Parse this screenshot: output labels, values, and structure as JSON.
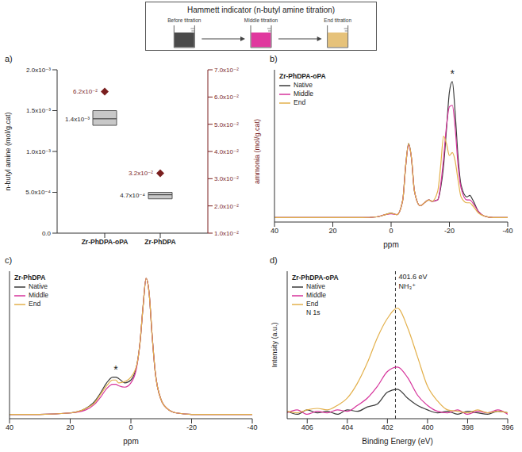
{
  "header": {
    "title": "Hammett indicator (n-butyl amine titration)",
    "beakers": [
      {
        "label": "Before titration",
        "color": "#4a4a4a"
      },
      {
        "label": "Middle titration",
        "color": "#e0389e"
      },
      {
        "label": "End titration",
        "color": "#e6c27a"
      }
    ]
  },
  "chart_data": [
    {
      "type": "box",
      "panel": "a)",
      "categories": [
        "Zr-PhDPA-oPA",
        "Zr-PhDPA"
      ],
      "ylabel": "n-butyl amine (mol/g.cat)",
      "y2label": "ammonia (mol/g.cat)",
      "ylim": [
        0,
        0.002
      ],
      "yticks": [
        {
          "value": 0,
          "label": "0.0"
        },
        {
          "value": 0.0005,
          "label": "5.0x10⁻⁴"
        },
        {
          "value": 0.001,
          "label": "1.0x10⁻³"
        },
        {
          "value": 0.0015,
          "label": "1.5x10⁻³"
        },
        {
          "value": 0.002,
          "label": "2.0x10⁻³"
        }
      ],
      "y2lim": [
        0.01,
        0.07
      ],
      "y2ticks": [
        {
          "value": 0.01,
          "label": "1.0x10⁻²"
        },
        {
          "value": 0.02,
          "label": "2.0x10⁻²"
        },
        {
          "value": 0.03,
          "label": "3.0x10⁻²"
        },
        {
          "value": 0.04,
          "label": "4.0x10⁻²"
        },
        {
          "value": 0.05,
          "label": "5.0x10⁻²"
        },
        {
          "value": 0.06,
          "label": "6.0x10⁻²"
        },
        {
          "value": 0.07,
          "label": "7.0x10⁻²"
        }
      ],
      "data_labels": true,
      "series": [
        {
          "type": "box",
          "color": "#c8c8c8",
          "values": [
            0.0014,
            0.00047
          ],
          "box_low": [
            0.00132,
            0.00042
          ],
          "box_high": [
            0.0015,
            0.0005
          ],
          "value_labels": [
            "1.4x10⁻³",
            "4.7x10⁻⁴"
          ]
        },
        {
          "type": "scatter",
          "marker": "diamond",
          "axis": "y2",
          "color": "#7a1f1f",
          "values": [
            0.062,
            0.032
          ],
          "value_labels": [
            "6.2x10⁻²",
            "3.2x10⁻²"
          ]
        }
      ]
    },
    {
      "type": "line",
      "panel": "b)",
      "legend_title": "Zr-PhDPA-oPA",
      "legend": "top-left",
      "xlabel": "ppm",
      "xlim": [
        40,
        -40
      ],
      "xticks": [
        40,
        20,
        0,
        -20,
        -40
      ],
      "ylim": [
        -3,
        100
      ],
      "tick_labels": "x",
      "x": [
        40,
        30,
        20,
        10,
        5,
        2,
        0,
        -2,
        -4,
        -5,
        -6,
        -7,
        -8,
        -10,
        -12,
        -13,
        -14,
        -16,
        -17,
        -18,
        -19,
        -20,
        -21,
        -22,
        -23,
        -24,
        -26,
        -27,
        -28,
        -30,
        -32,
        -35,
        -40
      ],
      "series": [
        {
          "name": "Native",
          "color": "#3a3a3a",
          "values": [
            0,
            0,
            0,
            0,
            0.5,
            2,
            3,
            2,
            12,
            35,
            50,
            40,
            18,
            8,
            11,
            12,
            11,
            12,
            20,
            35,
            60,
            85,
            92,
            70,
            40,
            22,
            14,
            15,
            12,
            4,
            1,
            0,
            0
          ]
        },
        {
          "name": "Middle",
          "color": "#d6339b",
          "values": [
            0,
            0,
            0,
            0,
            0.5,
            2,
            2.5,
            2,
            12,
            35,
            49,
            40,
            18,
            8,
            11,
            12,
            11,
            12,
            22,
            40,
            62,
            75,
            76,
            60,
            35,
            20,
            12,
            12,
            10,
            4,
            1,
            0,
            0
          ]
        },
        {
          "name": "End",
          "color": "#e3b04b",
          "values": [
            0,
            0,
            0,
            0,
            0.5,
            2,
            3,
            2,
            12,
            35,
            50,
            40,
            18,
            8,
            11,
            12,
            11,
            18,
            35,
            55,
            50,
            42,
            44,
            38,
            25,
            14,
            10,
            10,
            8,
            3,
            1,
            0,
            0
          ]
        }
      ],
      "annotations": [
        {
          "text": "*",
          "x": -21,
          "y": 92
        }
      ]
    },
    {
      "type": "line",
      "panel": "c)",
      "legend_title": "Zr-PhDPA",
      "legend": "top-left",
      "xlabel": "ppm",
      "xlim": [
        40,
        -40
      ],
      "xticks": [
        40,
        20,
        0,
        -20,
        -40
      ],
      "ylim": [
        -3,
        100
      ],
      "tick_labels": "x",
      "x": [
        40,
        30,
        20,
        15,
        12,
        10,
        8,
        6,
        5,
        4,
        2,
        0,
        -2,
        -3,
        -4,
        -5,
        -6,
        -7,
        -8,
        -10,
        -12,
        -15,
        -20,
        -30,
        -40
      ],
      "series": [
        {
          "name": "Native",
          "color": "#3a3a3a",
          "values": [
            0,
            0,
            1,
            4,
            9,
            15,
            22,
            26,
            26,
            25,
            22,
            24,
            35,
            50,
            75,
            95,
            85,
            55,
            30,
            10,
            4,
            1,
            0,
            0,
            0
          ]
        },
        {
          "name": "Middle",
          "color": "#d6339b",
          "values": [
            0,
            0,
            1,
            3,
            7,
            12,
            18,
            21,
            21,
            20,
            19,
            22,
            34,
            50,
            75,
            95,
            85,
            55,
            30,
            10,
            4,
            1,
            0,
            0,
            0
          ]
        },
        {
          "name": "End",
          "color": "#e3b04b",
          "values": [
            0,
            0,
            1,
            4,
            8,
            14,
            20,
            24,
            24,
            22,
            23,
            26,
            35,
            50,
            75,
            95,
            85,
            55,
            30,
            10,
            4,
            1,
            0,
            0,
            0
          ]
        }
      ],
      "annotations": [
        {
          "text": "*",
          "x": 5,
          "y": 26
        }
      ]
    },
    {
      "type": "line",
      "panel": "d)",
      "legend_title": "Zr-PhDPA-oPA",
      "legend_note": "N 1s",
      "legend": "top-left",
      "xlabel": "Binding Energy (eV)",
      "ylabel": "Intensity (a.u.)",
      "xlim": [
        407,
        396
      ],
      "xticks": [
        406,
        404,
        402,
        400,
        398,
        396
      ],
      "ylim": [
        0,
        100
      ],
      "tick_labels": "x",
      "ref_line": 401.6,
      "x": [
        407,
        406.5,
        406,
        405.5,
        405,
        404.5,
        404,
        403.5,
        403,
        402.5,
        402,
        401.5,
        401,
        400.5,
        400,
        399.5,
        399,
        398.5,
        398,
        397.5,
        397,
        396.5,
        396
      ],
      "series": [
        {
          "name": "Native",
          "color": "#3a3a3a",
          "values": [
            5,
            3,
            6,
            4,
            5,
            3,
            6,
            5,
            8,
            10,
            18,
            20,
            14,
            9,
            6,
            4,
            5,
            3,
            5,
            4,
            3,
            5,
            4
          ]
        },
        {
          "name": "Middle",
          "color": "#d6339b",
          "values": [
            4,
            6,
            3,
            5,
            4,
            6,
            5,
            9,
            14,
            22,
            32,
            35,
            28,
            16,
            9,
            5,
            4,
            6,
            3,
            5,
            4,
            6,
            3
          ]
        },
        {
          "name": "End",
          "color": "#e3b04b",
          "values": [
            5,
            4,
            6,
            7,
            6,
            9,
            14,
            24,
            38,
            55,
            68,
            75,
            62,
            42,
            22,
            12,
            6,
            5,
            4,
            6,
            4,
            5,
            4
          ]
        }
      ],
      "annotations": [
        {
          "text": "401.6 eV",
          "x": 401.6
        },
        {
          "text": "NH₃⁺",
          "x": 401.6
        }
      ]
    }
  ]
}
